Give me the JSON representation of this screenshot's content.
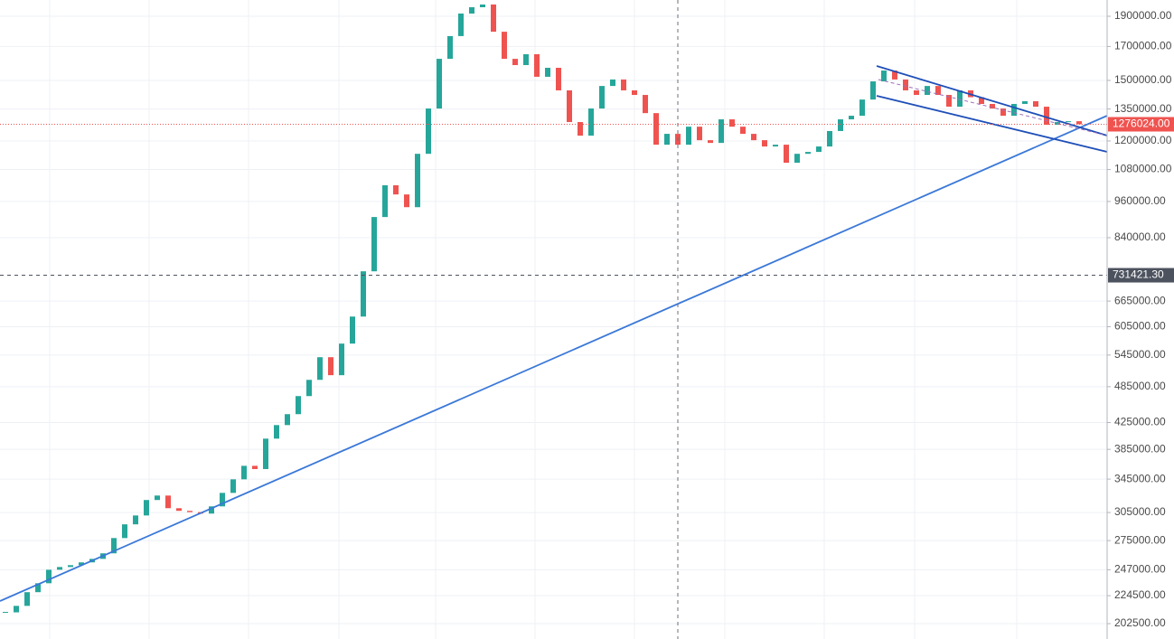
{
  "chart_data": {
    "type": "candlestick",
    "log_scale": true,
    "grid": true,
    "up_color": "#26a69a",
    "down_color": "#ef5350",
    "ylim": [
      191350,
      2017500
    ],
    "yticks": [
      {
        "value": 1900000,
        "label": "1900000.00"
      },
      {
        "value": 1700000,
        "label": "1700000.00"
      },
      {
        "value": 1500000,
        "label": "1500000.00"
      },
      {
        "value": 1350000,
        "label": "1350000.00"
      },
      {
        "value": 1200000,
        "label": "1200000.00"
      },
      {
        "value": 1080000,
        "label": "1080000.00"
      },
      {
        "value": 960000,
        "label": "960000.00"
      },
      {
        "value": 840000,
        "label": "840000.00"
      },
      {
        "value": 665000,
        "label": "665000.00"
      },
      {
        "value": 605000,
        "label": "605000.00"
      },
      {
        "value": 545000,
        "label": "545000.00"
      },
      {
        "value": 485000,
        "label": "485000.00"
      },
      {
        "value": 425000,
        "label": "425000.00"
      },
      {
        "value": 385000,
        "label": "385000.00"
      },
      {
        "value": 345000,
        "label": "345000.00"
      },
      {
        "value": 305000,
        "label": "305000.00"
      },
      {
        "value": 275000,
        "label": "275000.00"
      },
      {
        "value": 247000,
        "label": "247000.00"
      },
      {
        "value": 224500,
        "label": "224500.00"
      },
      {
        "value": 202500,
        "label": "202500.00"
      }
    ],
    "price_lines": [
      {
        "value": 1276024,
        "label": "1276024.00",
        "color": "#ef5350",
        "style": "dotted"
      },
      {
        "value": 731421.3,
        "label": "731421.30",
        "color": "#4c525e",
        "style": "dashed"
      }
    ],
    "values": [
      211100,
      216200,
      227400,
      235000,
      247000,
      249500,
      251200,
      253800,
      257100,
      262400,
      277600,
      292000,
      301700,
      319400,
      324700,
      309900,
      306900,
      305500,
      303800,
      312000,
      327900,
      344700,
      362300,
      358000,
      400500,
      421000,
      438300,
      468500,
      497400,
      540700,
      506000,
      568500,
      628100,
      742100,
      906500,
      1019000,
      985200,
      940000,
      1144400,
      1352400,
      1624100,
      1766200,
      1919200,
      1964400,
      1984200,
      1794700,
      1624100,
      1587100,
      1651900,
      1520200,
      1571300,
      1445900,
      1286500,
      1223600,
      1352400,
      1469500,
      1505100,
      1445900,
      1421800,
      1329600,
      1183500,
      1231800,
      1183500,
      1264800,
      1203300,
      1191300,
      1299400,
      1264800,
      1231800,
      1203300,
      1175700,
      1183500,
      1107200,
      1144400,
      1152400,
      1175700,
      1244700,
      1299400,
      1316700,
      1397800,
      1494500,
      1555600,
      1505100,
      1445900,
      1421800,
      1469500,
      1421800,
      1361400,
      1445900,
      1410000,
      1375400,
      1352400,
      1316700,
      1375400,
      1389300,
      1361400,
      1273600,
      1286500,
      1290500,
      1276024
    ]
  }
}
